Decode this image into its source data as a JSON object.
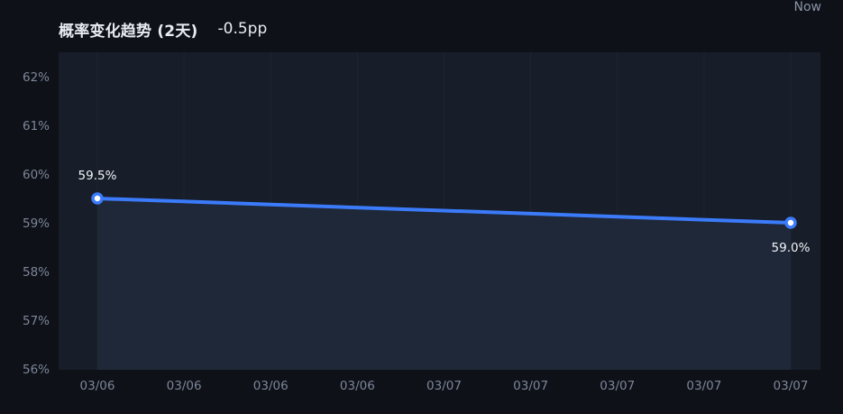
{
  "header": {
    "title": "概率变化趋势 (2天)",
    "delta": "-0.5pp",
    "now_label": "Now"
  },
  "colors": {
    "page_bg": "#0e1118",
    "plot_bg": "#171d29",
    "area_fill": "#1f2838",
    "line": "#3b7bfa",
    "point_fill": "#ffffff",
    "grid": "rgba(255,255,255,0.035)",
    "axis_text": "#7d8699",
    "title_text": "#e8ebf1"
  },
  "chart_data": {
    "type": "line",
    "title": "概率变化趋势 (2天)",
    "subtitle": "-0.5pp",
    "categories": [
      "03/06",
      "03/06",
      "03/06",
      "03/06",
      "03/07",
      "03/07",
      "03/07",
      "03/07",
      "03/07"
    ],
    "points": [
      {
        "category_index": 0,
        "category": "03/06",
        "value": 59.5,
        "label": "59.5%",
        "label_position": "above"
      },
      {
        "category_index": 8,
        "category": "03/07",
        "value": 59.0,
        "label": "59.0%",
        "label_position": "below"
      }
    ],
    "ylim": [
      56,
      62
    ],
    "y_ticks": [
      {
        "value": 56,
        "label": "56%"
      },
      {
        "value": 57,
        "label": "57%"
      },
      {
        "value": 58,
        "label": "58%"
      },
      {
        "value": 59,
        "label": "59%"
      },
      {
        "value": 60,
        "label": "60%"
      },
      {
        "value": 61,
        "label": "61%"
      },
      {
        "value": 62,
        "label": "62%"
      }
    ],
    "xlabel": "",
    "ylabel": "",
    "legend": "none",
    "grid": "vertical-faint",
    "area": true
  }
}
